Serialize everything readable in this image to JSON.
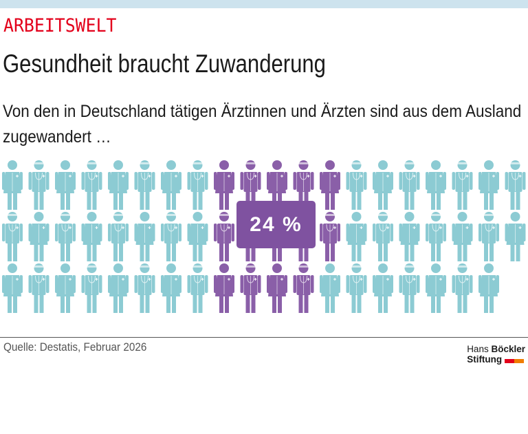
{
  "header": {
    "kicker": "ARBEITSWELT",
    "title": "Gesundheit braucht Zuwanderung",
    "subtitle": "Von den in Deutschland tätigen Ärztinnen und Ärzten sind aus dem Ausland zugewandert …"
  },
  "chart_data": {
    "type": "pictogram",
    "value_label": "24 %",
    "value_percent": 24,
    "rows": [
      {
        "total": 20,
        "highlighted_columns": [
          9,
          10,
          11,
          12,
          13
        ]
      },
      {
        "total": 20,
        "highlighted_columns": [
          9,
          10,
          11,
          12,
          13
        ]
      },
      {
        "total": 19,
        "highlighted_columns": [
          9,
          10,
          11,
          12
        ]
      }
    ],
    "colors": {
      "highlight": "#8a5fa8",
      "base": "#8ccbd3",
      "label_box": "#7f52a0"
    }
  },
  "footer": {
    "source": "Quelle: Destatis, Februar 2026",
    "logo_line1_a": "Hans",
    "logo_line1_b": "Böckler",
    "logo_line2": "Stiftung",
    "logo_colors": [
      "#e3001b",
      "#f07d00"
    ]
  }
}
